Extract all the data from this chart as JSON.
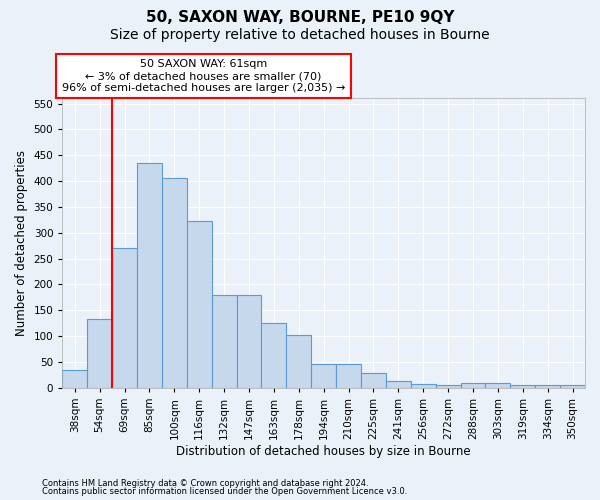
{
  "title1": "50, SAXON WAY, BOURNE, PE10 9QY",
  "title2": "Size of property relative to detached houses in Bourne",
  "xlabel": "Distribution of detached houses by size in Bourne",
  "ylabel": "Number of detached properties",
  "footnote1": "Contains HM Land Registry data © Crown copyright and database right 2024.",
  "footnote2": "Contains public sector information licensed under the Open Government Licence v3.0.",
  "categories": [
    "38sqm",
    "54sqm",
    "69sqm",
    "85sqm",
    "100sqm",
    "116sqm",
    "132sqm",
    "147sqm",
    "163sqm",
    "178sqm",
    "194sqm",
    "210sqm",
    "225sqm",
    "241sqm",
    "256sqm",
    "272sqm",
    "288sqm",
    "303sqm",
    "319sqm",
    "334sqm",
    "350sqm"
  ],
  "values": [
    35,
    133,
    270,
    435,
    405,
    322,
    180,
    180,
    125,
    103,
    47,
    47,
    28,
    14,
    7,
    5,
    10,
    10,
    5,
    5,
    5
  ],
  "bar_color": "#c5d8ec",
  "bar_edge_color": "#5b9bd5",
  "red_line_x": 1.5,
  "ylim": [
    0,
    560
  ],
  "yticks": [
    0,
    50,
    100,
    150,
    200,
    250,
    300,
    350,
    400,
    450,
    500,
    550
  ],
  "annotation_title": "50 SAXON WAY: 61sqm",
  "annotation_line1": "← 3% of detached houses are smaller (70)",
  "annotation_line2": "96% of semi-detached houses are larger (2,035) →",
  "bg_color": "#eaf1f8",
  "plot_bg_color": "#eaf1f8",
  "grid_color": "#ffffff",
  "title1_fontsize": 11,
  "title2_fontsize": 10,
  "axis_label_fontsize": 8.5,
  "tick_fontsize": 7.5,
  "annot_fontsize": 8
}
